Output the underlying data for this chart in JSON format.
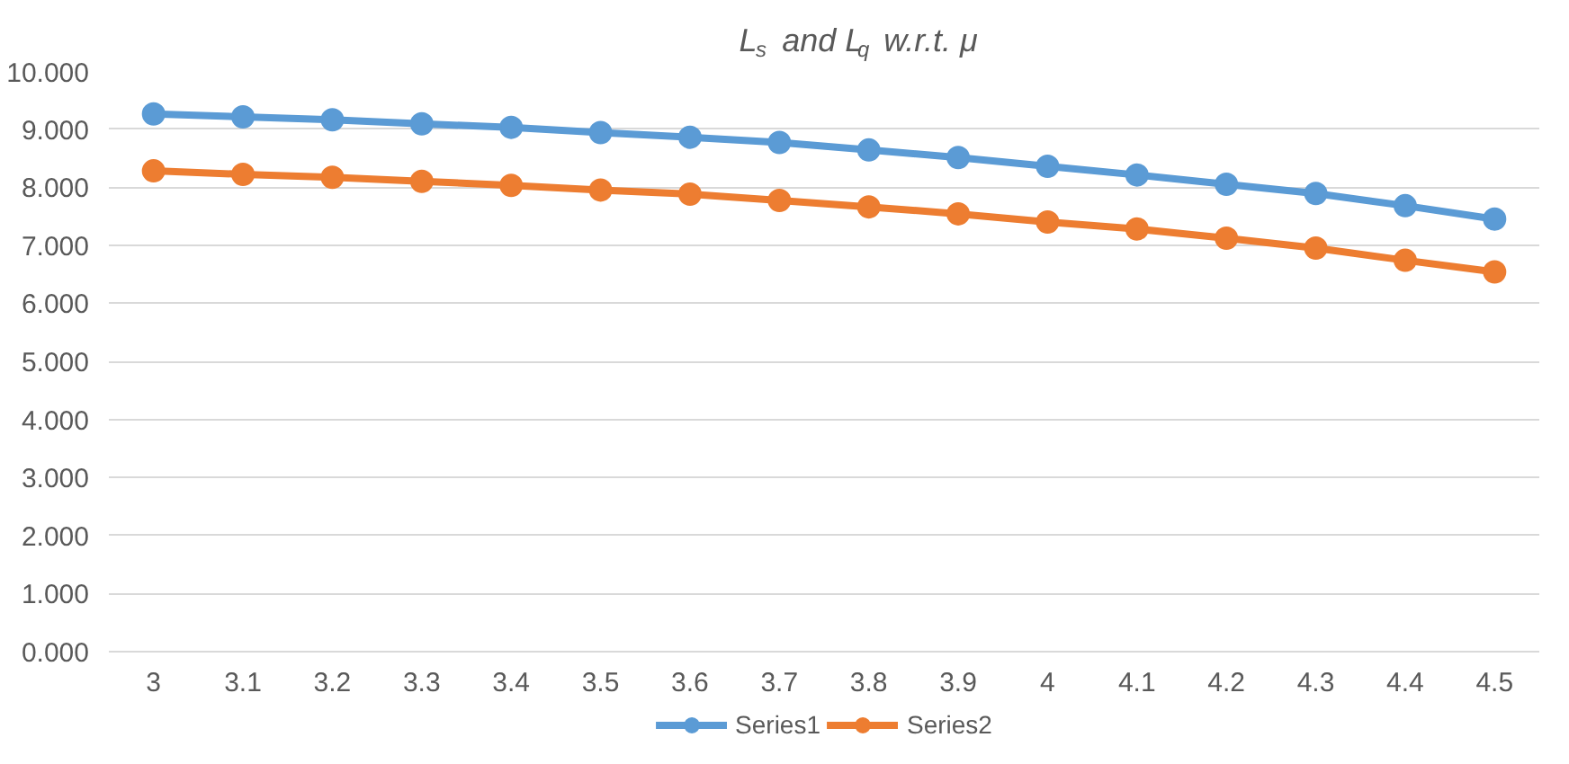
{
  "chart_data": {
    "type": "line",
    "title": "L$_{s}$ and L$_{q}$ w.r.t.  μ",
    "x": [
      3,
      3.1,
      3.2,
      3.3,
      3.4,
      3.5,
      3.6,
      3.7,
      3.8,
      3.9,
      4,
      4.1,
      4.2,
      4.3,
      4.4,
      4.5
    ],
    "series": [
      {
        "name": "Series1",
        "color": "#5b9bd5",
        "values": [
          9.26,
          9.21,
          9.16,
          9.09,
          9.03,
          8.94,
          8.86,
          8.77,
          8.64,
          8.51,
          8.36,
          8.21,
          8.05,
          7.89,
          7.68,
          7.45
        ]
      },
      {
        "name": "Series2",
        "color": "#ed7d31",
        "values": [
          8.28,
          8.22,
          8.17,
          8.1,
          8.03,
          7.95,
          7.88,
          7.77,
          7.66,
          7.54,
          7.4,
          7.28,
          7.12,
          6.95,
          6.74,
          6.54
        ]
      }
    ],
    "xlim": [
      2.95,
      4.55
    ],
    "xticks": [
      3,
      3.1,
      3.2,
      3.3,
      3.4,
      3.5,
      3.6,
      3.7,
      3.8,
      3.9,
      4,
      4.1,
      4.2,
      4.3,
      4.4,
      4.5
    ],
    "ylim": [
      0,
      10
    ],
    "yticks": [
      {
        "value": 0,
        "label": "0.000"
      },
      {
        "value": 1,
        "label": "1.000"
      },
      {
        "value": 2,
        "label": "2.000"
      },
      {
        "value": 3,
        "label": "3.000"
      },
      {
        "value": 4,
        "label": "4.000"
      },
      {
        "value": 5,
        "label": "5.000"
      },
      {
        "value": 6,
        "label": "6.000"
      },
      {
        "value": 7,
        "label": "7.000"
      },
      {
        "value": 8,
        "label": "8.000"
      },
      {
        "value": 9,
        "label": "9.000"
      },
      {
        "value": 10,
        "label": "10.000"
      }
    ],
    "grid": "y",
    "legend": "bottom",
    "marker": "circle",
    "line_style": "solid"
  }
}
